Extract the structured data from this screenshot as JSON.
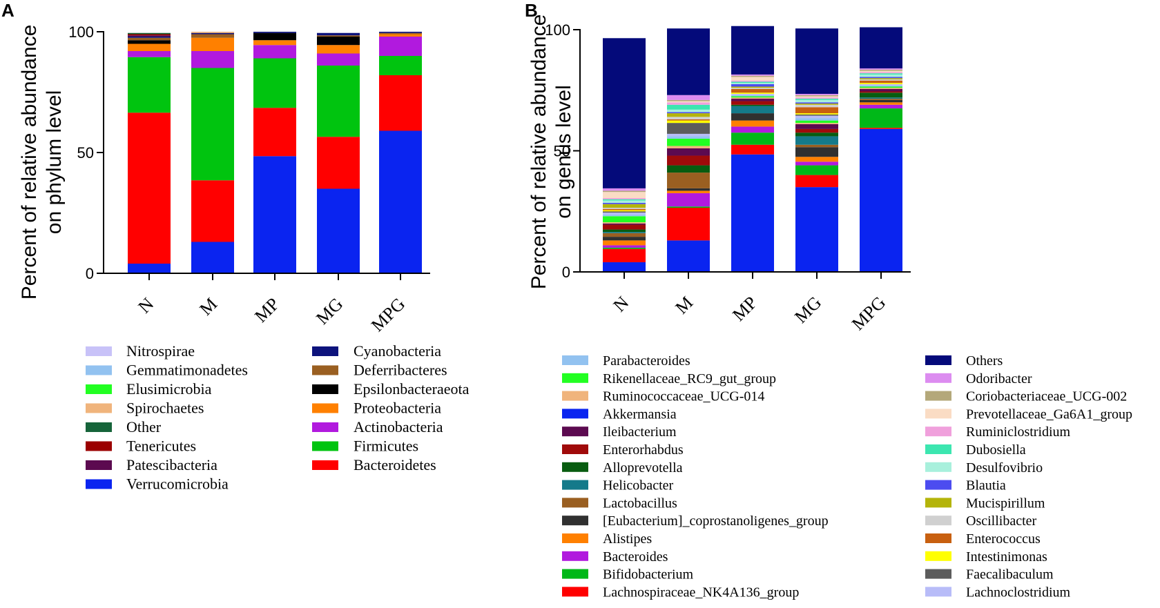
{
  "chart_data": [
    {
      "panel": "A",
      "type": "bar",
      "stacked": true,
      "ylabel": "Percent of relative abundance\non phylum level",
      "ylim": [
        0,
        100
      ],
      "yticks": [
        "0",
        "50",
        "100"
      ],
      "categories": [
        "N",
        "M",
        "MP",
        "MG",
        "MPG"
      ],
      "series": [
        {
          "name": "Verrucomicrobia",
          "color": "#0a24f0",
          "values": [
            4,
            13,
            48.5,
            35,
            59
          ]
        },
        {
          "name": "Bacteroidetes",
          "color": "#ff0000",
          "values": [
            62.5,
            25.5,
            20,
            21.5,
            23
          ]
        },
        {
          "name": "Firmicutes",
          "color": "#00c40f",
          "values": [
            23,
            46.5,
            20.5,
            29.5,
            8
          ]
        },
        {
          "name": "Actinobacteria",
          "color": "#b11ade",
          "values": [
            2.5,
            7,
            5.5,
            5,
            8
          ]
        },
        {
          "name": "Proteobacteria",
          "color": "#ff8000",
          "values": [
            3,
            5.5,
            2,
            3.5,
            1
          ]
        },
        {
          "name": "Epsilonbacteraeota",
          "color": "#000000",
          "values": [
            1.5,
            0,
            3,
            3.5,
            0
          ]
        },
        {
          "name": "Deferribacteres",
          "color": "#9a5f21",
          "values": [
            1,
            1.5,
            0,
            0.5,
            0.5
          ]
        },
        {
          "name": "Cyanobacteria",
          "color": "#0d137c",
          "values": [
            0.5,
            0.5,
            0.5,
            1,
            0.5
          ]
        },
        {
          "name": "Patescibacteria",
          "color": "#5c0a50",
          "values": [
            0.5,
            0,
            0,
            0,
            0
          ]
        },
        {
          "name": "Tenericutes",
          "color": "#9b0000",
          "values": [
            0.5,
            0,
            0,
            0,
            0
          ]
        },
        {
          "name": "Other",
          "color": "#16643a",
          "values": [
            0.5,
            0,
            0,
            0,
            0
          ]
        },
        {
          "name": "Spirochaetes",
          "color": "#f0b47c",
          "values": [
            0,
            0.5,
            0,
            0,
            0
          ]
        },
        {
          "name": "Elusimicrobia",
          "color": "#22ff22",
          "values": [
            0,
            0,
            0,
            0,
            0
          ]
        },
        {
          "name": "Gemmatimonadetes",
          "color": "#92c2f0",
          "values": [
            0,
            0,
            0,
            0,
            0
          ]
        },
        {
          "name": "Nitrospirae",
          "color": "#c8c2f8",
          "values": [
            0,
            0,
            0,
            0,
            0
          ]
        }
      ],
      "legend_columns": [
        [
          "Nitrospirae",
          "Gemmatimonadetes",
          "Elusimicrobia",
          "Spirochaetes",
          "Other",
          "Tenericutes",
          "Patescibacteria",
          "Verrucomicrobia"
        ],
        [
          "Cyanobacteria",
          "Deferribacteres",
          "Epsilonbacteraeota",
          "Proteobacteria",
          "Actinobacteria",
          "Firmicutes",
          "Bacteroidetes"
        ]
      ]
    },
    {
      "panel": "B",
      "type": "bar",
      "stacked": true,
      "ylabel": "Percent of relative abundance\non genus level",
      "ylim": [
        0,
        100
      ],
      "yticks": [
        "0",
        "50",
        "100"
      ],
      "categories": [
        "N",
        "M",
        "MP",
        "MG",
        "MPG"
      ],
      "series": [
        {
          "name": "Akkermansia",
          "color": "#0a24f0",
          "values": [
            4,
            13,
            48.5,
            35,
            59
          ]
        },
        {
          "name": "Lachnospiraceae_NK4A136_group",
          "color": "#ff0000",
          "values": [
            5.5,
            13.5,
            4,
            5,
            0.5
          ]
        },
        {
          "name": "Bifidobacterium",
          "color": "#00b818",
          "values": [
            0.5,
            0.5,
            5,
            4,
            8
          ]
        },
        {
          "name": "Bacteroides",
          "color": "#b11ade",
          "values": [
            1,
            5.5,
            2.5,
            1.5,
            1.5
          ]
        },
        {
          "name": "Alistipes",
          "color": "#ff8000",
          "values": [
            2,
            1,
            2.5,
            2,
            1
          ]
        },
        {
          "name": "[Eubacterium]_coprostanoligenes_group",
          "color": "#303030",
          "values": [
            1.5,
            1,
            3,
            4,
            1
          ]
        },
        {
          "name": "Lactobacillus",
          "color": "#9a5f21",
          "values": [
            1.5,
            6.5,
            0,
            1,
            0.5
          ]
        },
        {
          "name": "Helicobacter",
          "color": "#147a8a",
          "values": [
            0.5,
            0,
            3,
            3.5,
            0.5
          ]
        },
        {
          "name": "Alloprevotella",
          "color": "#085c10",
          "values": [
            1,
            3,
            0.5,
            1.5,
            2
          ]
        },
        {
          "name": "Enterorhabdus",
          "color": "#a00a0a",
          "values": [
            2,
            4,
            1.5,
            1.5,
            0.5
          ]
        },
        {
          "name": "Ileibacterium",
          "color": "#5c0a50",
          "values": [
            0.5,
            3,
            1,
            2,
            1
          ]
        },
        {
          "name": "Ruminococcaceae_UCG-014",
          "color": "#f0b47c",
          "values": [
            0.5,
            1,
            0.5,
            0.5,
            0.5
          ]
        },
        {
          "name": "Rikenellaceae_RC9_gut_group",
          "color": "#22ff22",
          "values": [
            2.5,
            3,
            0.5,
            1,
            0.5
          ]
        },
        {
          "name": "Parabacteroides",
          "color": "#92c2f0",
          "values": [
            0.5,
            1,
            0.5,
            1,
            0.5
          ]
        },
        {
          "name": "Lachnoclostridium",
          "color": "#b8bcf8",
          "values": [
            1,
            1,
            0.5,
            1,
            0.5
          ]
        },
        {
          "name": "Faecalibaculum",
          "color": "#5c5c5c",
          "values": [
            0.5,
            4.5,
            0,
            0.5,
            0
          ]
        },
        {
          "name": "Intestinimonas",
          "color": "#ffff00",
          "values": [
            0.5,
            1,
            0.5,
            0.5,
            0.5
          ]
        },
        {
          "name": "Enterococcus",
          "color": "#c86010",
          "values": [
            0.5,
            0.5,
            1.5,
            2.5,
            1
          ]
        },
        {
          "name": "Oscillibacter",
          "color": "#d0d0d0",
          "values": [
            0.5,
            1,
            0.5,
            1,
            0.5
          ]
        },
        {
          "name": "Mucispirillum",
          "color": "#b4b40a",
          "values": [
            1.5,
            1.5,
            0.5,
            0.5,
            0.5
          ]
        },
        {
          "name": "Blautia",
          "color": "#4c4cf0",
          "values": [
            0.5,
            0.5,
            1,
            0.5,
            0.5
          ]
        },
        {
          "name": "Desulfovibrio",
          "color": "#a8f0dc",
          "values": [
            1,
            1,
            0.5,
            1,
            1
          ]
        },
        {
          "name": "Dubosiella",
          "color": "#3ce6b0",
          "values": [
            0.5,
            2,
            0.5,
            0.5,
            0.5
          ]
        },
        {
          "name": "Ruminiclostridium",
          "color": "#f0a0dc",
          "values": [
            0.5,
            1,
            0.5,
            0.5,
            0.5
          ]
        },
        {
          "name": "Prevotellaceae_Ga6A1_group",
          "color": "#fadcc4",
          "values": [
            2.5,
            0.5,
            1.5,
            0.5,
            0.5
          ]
        },
        {
          "name": "Coriobacteriaceae_UCG-002",
          "color": "#b4a87a",
          "values": [
            0.5,
            0.5,
            0.5,
            0.5,
            0.5
          ]
        },
        {
          "name": "Odoribacter",
          "color": "#dc8cf0",
          "values": [
            1,
            2,
            0.5,
            0.5,
            0.5
          ]
        },
        {
          "name": "Others",
          "color": "#040a7a",
          "values": [
            62,
            27.5,
            20,
            27,
            17
          ]
        }
      ],
      "legend_columns": [
        [
          "Parabacteroides",
          "Rikenellaceae_RC9_gut_group",
          "Ruminococcaceae_UCG-014",
          "Akkermansia",
          "Ileibacterium",
          "Enterorhabdus",
          "Alloprevotella",
          "Helicobacter",
          "Lactobacillus",
          "[Eubacterium]_coprostanoligenes_group",
          "Alistipes",
          "Bacteroides",
          "Bifidobacterium",
          "Lachnospiraceae_NK4A136_group"
        ],
        [
          "Others",
          "Odoribacter",
          "Coriobacteriaceae_UCG-002",
          "Prevotellaceae_Ga6A1_group",
          "Ruminiclostridium",
          "Dubosiella",
          "Desulfovibrio",
          "Blautia",
          "Mucispirillum",
          "Oscillibacter",
          "Enterococcus",
          "Intestinimonas",
          "Faecalibaculum",
          "Lachnoclostridium"
        ]
      ]
    }
  ]
}
